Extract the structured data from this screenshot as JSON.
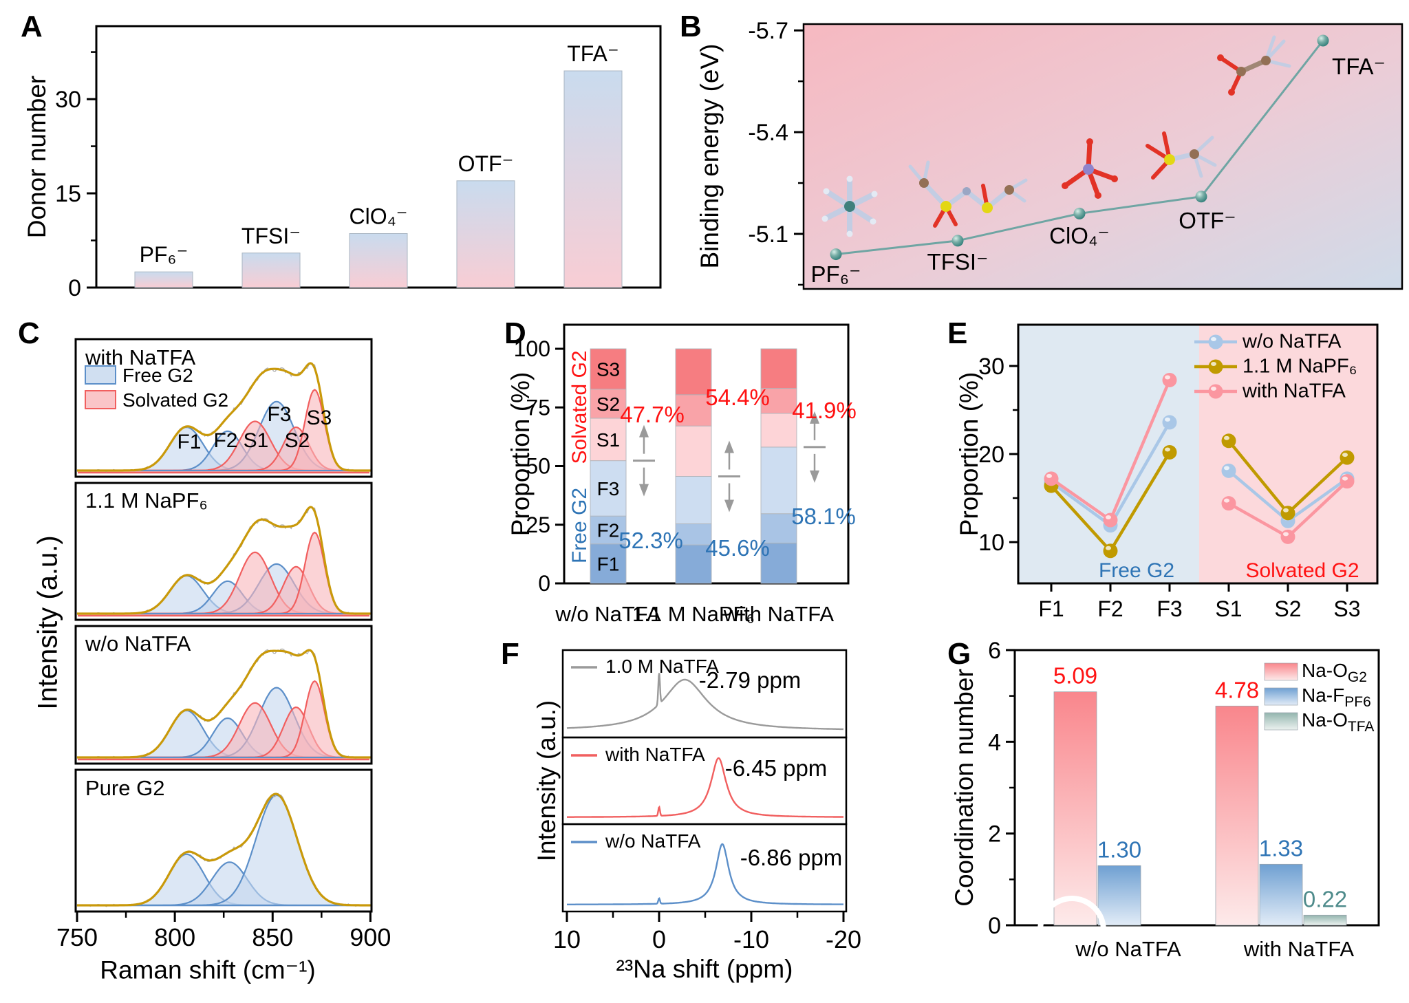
{
  "colors": {
    "accent_red_text": "#ff1212",
    "accent_blue_text": "#2e74b5",
    "teal_text": "#4e8b8b",
    "gradient_bar_top": "#c9dbee",
    "gradient_bar_bottom": "#f8cdd4",
    "b_bg_pink": "#f6b9c1",
    "b_bg_blue": "#cfdbe9",
    "teal_line": "#6fa5a3",
    "teal_marker": "#2f7d78",
    "free_fill": "#c4d7ee",
    "free_stroke": "#5c8fc9",
    "solvated_fill": "#f9b6ba",
    "solvated_stroke": "#f15f5f",
    "envelope_gold": "#c9990a",
    "raw_gray": "#b3b3b3",
    "d_segments": [
      "#86abd8",
      "#a9c4e5",
      "#cdddf1",
      "#fdd4d7",
      "#f9a3a8",
      "#f67d81"
    ],
    "e_series": [
      "#a9c7e7",
      "#c09a00",
      "#fb96a0"
    ],
    "e_bg_free": "#dfe9f2",
    "e_bg_solvated": "#fcd9dc",
    "f_traces": [
      "#9a9a9a",
      "#f15f5f",
      "#5c8fc9"
    ],
    "g_top": [
      "#f9868c",
      "#6fa0d2",
      "#93b5ae"
    ],
    "g_bottom": [
      "#fdeaea",
      "#e2ecf7",
      "#ecf2f0"
    ],
    "arrow_gray": "#9a9a9a"
  },
  "chart_data": [
    {
      "panel": "A",
      "type": "bar",
      "ylabel": "Donor number",
      "yticks": [
        0,
        15,
        30
      ],
      "ylim": [
        0,
        41.5
      ],
      "categories": [
        "PF₆⁻",
        "TFSI⁻",
        "ClO₄⁻",
        "OTF⁻",
        "TFA⁻"
      ],
      "values": [
        2.5,
        5.5,
        8.6,
        17,
        34.5
      ]
    },
    {
      "panel": "B",
      "type": "scatter",
      "ylabel": "Binding energy (eV)",
      "yticks": [
        -5.7,
        -5.4,
        -5.1
      ],
      "axis_inverted": true,
      "categories": [
        "PF₆⁻",
        "TFSI⁻",
        "ClO₄⁻",
        "OTF⁻",
        "TFA⁻"
      ],
      "values": [
        -5.04,
        -5.08,
        -5.16,
        -5.21,
        -5.67
      ],
      "molecule_icons": [
        "pf6-molecule-icon",
        "tfsi-molecule-icon",
        "clo4-molecule-icon",
        "otf-molecule-icon",
        "tfa-molecule-icon"
      ]
    },
    {
      "panel": "C",
      "type": "area",
      "xlabel": "Raman shift (cm⁻¹)",
      "ylabel": "Intensity (a.u.)",
      "xticks": [
        750,
        800,
        850,
        900
      ],
      "xlim": [
        750,
        900
      ],
      "legend": [
        {
          "label": "Free G2"
        },
        {
          "label": "Solvated G2"
        }
      ],
      "peaks": [
        {
          "name": "F1",
          "center": 806,
          "sigma": 8.5,
          "group": "free"
        },
        {
          "name": "F2",
          "center": 827,
          "sigma": 7.5,
          "group": "free"
        },
        {
          "name": "S1",
          "center": 841,
          "sigma": 8.0,
          "group": "solvated"
        },
        {
          "name": "F3",
          "center": 852,
          "sigma": 9.0,
          "group": "free"
        },
        {
          "name": "S2",
          "center": 862,
          "sigma": 6.5,
          "group": "solvated"
        },
        {
          "name": "S3",
          "center": 871.5,
          "sigma": 5.0,
          "group": "solvated"
        }
      ],
      "spectra": [
        {
          "title": "with NaTFA",
          "amps": [
            0.44,
            0.4,
            0.5,
            0.7,
            0.44,
            0.82
          ]
        },
        {
          "title": "1.1 M NaPF₆",
          "amps": [
            0.42,
            0.36,
            0.68,
            0.55,
            0.52,
            0.9
          ]
        },
        {
          "title": "w/o NaTFA",
          "amps": [
            0.43,
            0.36,
            0.5,
            0.64,
            0.46,
            0.7
          ]
        },
        {
          "title": "Pure G2",
          "amps": null,
          "pure_peaks": [
            {
              "center": 806,
              "sigma": 9.0,
              "amp": 0.45
            },
            {
              "center": 828,
              "sigma": 9.0,
              "amp": 0.38
            },
            {
              "center": 852,
              "sigma": 10.5,
              "amp": 0.97
            }
          ]
        }
      ]
    },
    {
      "panel": "D",
      "type": "stacked-bar",
      "ylabel": "Proportion (%)",
      "yticks": [
        0,
        25,
        50,
        75,
        100
      ],
      "categories": [
        "w/o NaTFA",
        "1.1 M NaPF₆",
        "with NaTFA"
      ],
      "series_labels": [
        "F1",
        "F2",
        "F3",
        "S1",
        "S2",
        "S3"
      ],
      "values": [
        [
          16.8,
          11.9,
          23.6,
          18.1,
          12.4,
          17.2
        ],
        [
          16.4,
          9.0,
          20.2,
          21.5,
          13.3,
          19.6
        ],
        [
          17.2,
          12.5,
          28.4,
          14.4,
          10.6,
          16.9
        ]
      ],
      "free_totals": [
        "52.3%",
        "45.6%",
        "58.1%"
      ],
      "solvated_totals": [
        "47.7%",
        "54.4%",
        "41.9%"
      ],
      "group_labels": {
        "solvated": "Solvated G2",
        "free": "Free G2"
      }
    },
    {
      "panel": "E",
      "type": "line",
      "ylabel": "Proportion (%)",
      "yticks": [
        10,
        20,
        30
      ],
      "categories": [
        "F1",
        "F2",
        "F3",
        "S1",
        "S2",
        "S3"
      ],
      "series": [
        {
          "name": "w/o NaTFA",
          "values": [
            16.8,
            11.9,
            23.6,
            18.1,
            12.4,
            17.2
          ]
        },
        {
          "name": "1.1 M NaPF₆",
          "values": [
            16.4,
            9.0,
            20.2,
            21.5,
            13.3,
            19.6
          ]
        },
        {
          "name": "with NaTFA",
          "values": [
            17.2,
            12.5,
            28.4,
            14.4,
            10.6,
            16.9
          ]
        }
      ],
      "regions": [
        {
          "label": "Free G2"
        },
        {
          "label": "Solvated G2"
        }
      ]
    },
    {
      "panel": "F",
      "type": "line",
      "xlabel": "²³Na shift (ppm)",
      "ylabel": "Intensity (a.u.)",
      "xticks": [
        10,
        0,
        -10,
        -20
      ],
      "xlim": [
        10,
        -20
      ],
      "traces": [
        {
          "name": "1.0 M NaTFA",
          "peak_ppm": -2.79,
          "width_ppm": 2.9,
          "annotation": "-2.79 ppm"
        },
        {
          "name": "with NaTFA",
          "peak_ppm": -6.45,
          "width_ppm": 1.0,
          "annotation": "-6.45 ppm"
        },
        {
          "name": "w/o NaTFA",
          "peak_ppm": -6.86,
          "width_ppm": 0.85,
          "annotation": "-6.86 ppm"
        }
      ]
    },
    {
      "panel": "G",
      "type": "grouped-bar",
      "ylabel": "Coordination number",
      "yticks": [
        0,
        2,
        4,
        6
      ],
      "categories": [
        "w/o NaTFA",
        "with NaTFA"
      ],
      "series": [
        {
          "name_main": "Na-O",
          "name_sub": "G2",
          "values": [
            5.09,
            4.78
          ]
        },
        {
          "name_main": "Na-F",
          "name_sub": "PF6",
          "values": [
            1.3,
            1.33
          ]
        },
        {
          "name_main": "Na-O",
          "name_sub": "TFA",
          "values": [
            null,
            0.22
          ]
        }
      ],
      "value_labels": [
        [
          "5.09",
          "4.78"
        ],
        [
          "1.30",
          "1.33"
        ],
        [
          null,
          "0.22"
        ]
      ]
    }
  ]
}
